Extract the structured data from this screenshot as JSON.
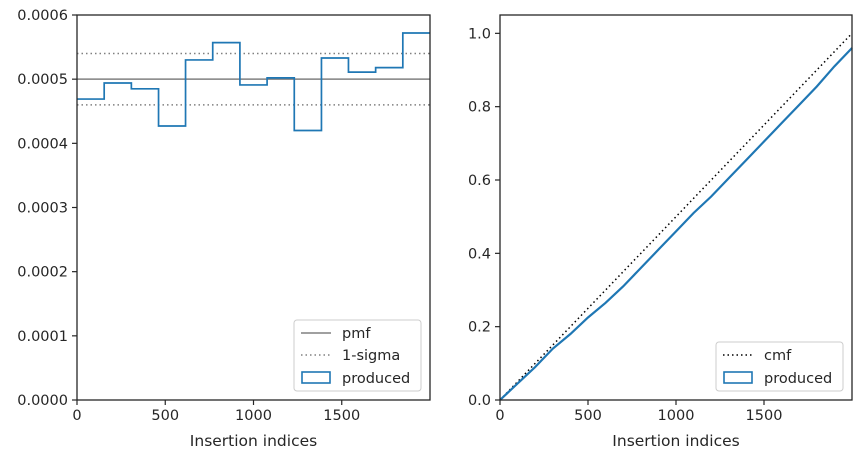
{
  "colors": {
    "series": "#1f77b4",
    "pmf": "#808080",
    "sigma": "#808080",
    "cmf": "#000000",
    "axis": "#262626"
  },
  "chart_data": [
    {
      "type": "step",
      "xlabel": "Insertion indices",
      "ylabel": "",
      "xlim": [
        0,
        2000
      ],
      "ylim": [
        0,
        0.0006
      ],
      "xticks": [
        0,
        500,
        1000,
        1500
      ],
      "xtick_labels": [
        "0",
        "500",
        "1000",
        "1500"
      ],
      "yticks": [
        0,
        0.0001,
        0.0002,
        0.0003,
        0.0004,
        0.0005,
        0.0006
      ],
      "ytick_labels": [
        "0.0000",
        "0.0001",
        "0.0002",
        "0.0003",
        "0.0004",
        "0.0005",
        "0.0006"
      ],
      "grid": false,
      "legend_position": "lower-right",
      "pmf": 0.0005,
      "sigma_band": [
        0.00046,
        0.00054
      ],
      "bin_edges": [
        0,
        154,
        308,
        462,
        615,
        769,
        923,
        1077,
        1231,
        1385,
        1538,
        1692,
        1846,
        2000
      ],
      "values": [
        0.000469,
        0.000494,
        0.000485,
        0.000427,
        0.00053,
        0.000557,
        0.000491,
        0.000502,
        0.00042,
        0.000533,
        0.000511,
        0.000518,
        0.000572
      ],
      "legend": [
        "pmf",
        "1-sigma",
        "produced"
      ]
    },
    {
      "type": "line",
      "xlabel": "Insertion indices",
      "ylabel": "",
      "xlim": [
        0,
        2000
      ],
      "ylim": [
        0,
        1.05
      ],
      "xticks": [
        0,
        500,
        1000,
        1500
      ],
      "xtick_labels": [
        "0",
        "500",
        "1000",
        "1500"
      ],
      "yticks": [
        0,
        0.2,
        0.4,
        0.6,
        0.8,
        1.0
      ],
      "ytick_labels": [
        "0.0",
        "0.2",
        "0.4",
        "0.6",
        "0.8",
        "1.0"
      ],
      "grid": false,
      "legend_position": "lower-right",
      "cmf": {
        "x": [
          0,
          2000
        ],
        "y": [
          0,
          1.0
        ]
      },
      "produced": {
        "x": [
          0,
          100,
          200,
          300,
          400,
          500,
          600,
          700,
          800,
          900,
          1000,
          1100,
          1200,
          1300,
          1400,
          1500,
          1600,
          1700,
          1800,
          1900,
          2000
        ],
        "y": [
          0,
          0.045,
          0.09,
          0.14,
          0.18,
          0.225,
          0.265,
          0.31,
          0.36,
          0.41,
          0.46,
          0.51,
          0.555,
          0.605,
          0.655,
          0.705,
          0.755,
          0.805,
          0.855,
          0.91,
          0.96
        ]
      },
      "legend": [
        "cmf",
        "produced"
      ]
    }
  ]
}
